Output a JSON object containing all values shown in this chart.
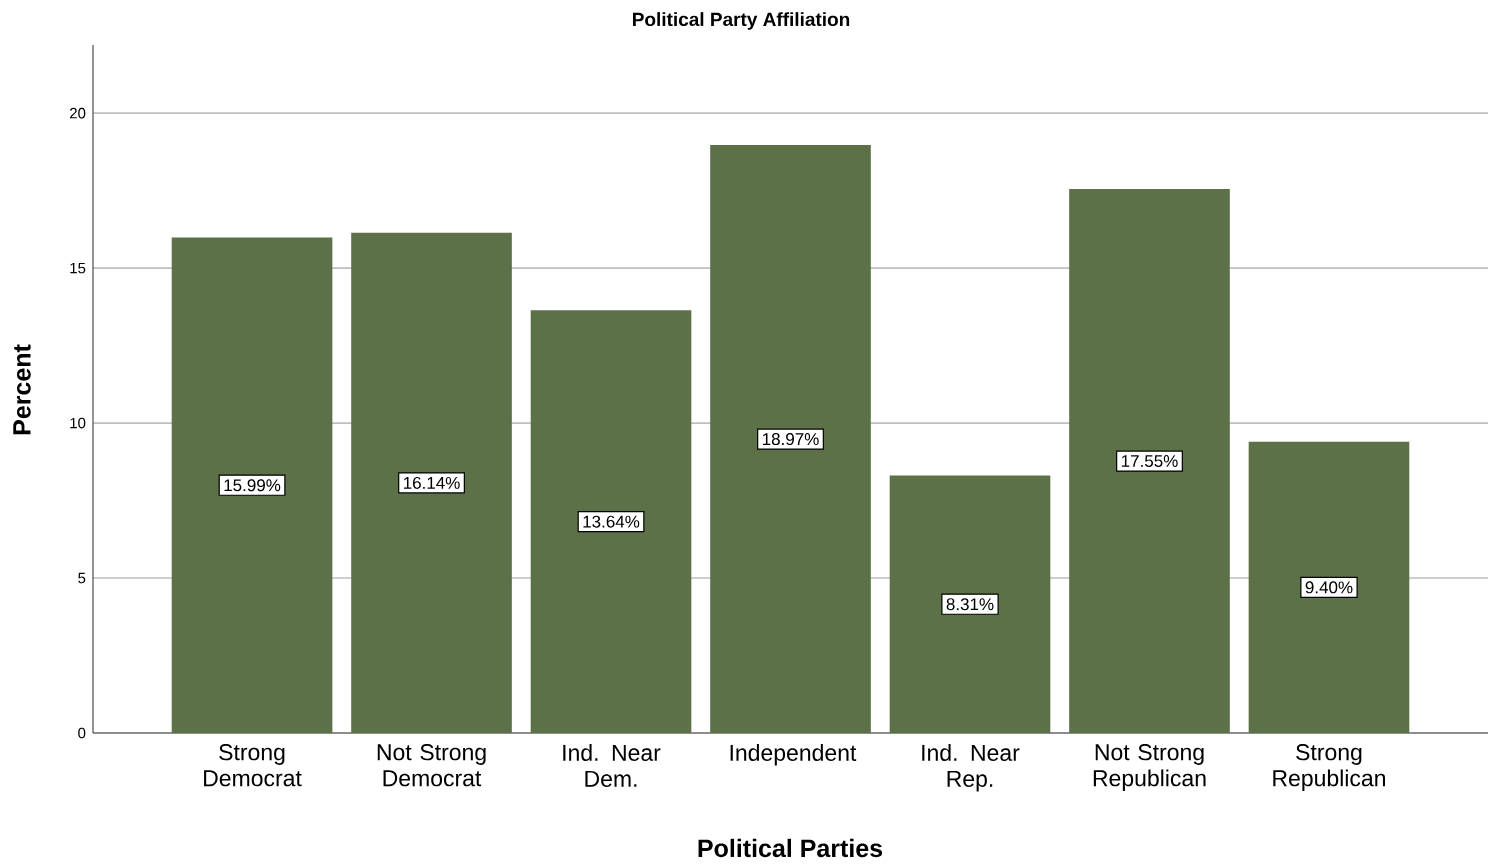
{
  "chart_data": {
    "type": "bar",
    "title": "Political Party Affiliation",
    "xlabel": "Political Parties",
    "ylabel": "Percent",
    "categories": [
      "Strong Democrat",
      "Not Strong Democrat",
      "Ind. Near Dem.",
      "Independent",
      "Ind. Near Rep.",
      "Not Strong Republican",
      "Strong Republican"
    ],
    "values": [
      15.99,
      16.14,
      13.64,
      18.97,
      8.31,
      17.55,
      9.4
    ],
    "value_labels": [
      "15.99%",
      "16.14%",
      "13.64%",
      "18.97%",
      "8.31%",
      "17.55%",
      "9.40%"
    ],
    "color": "#5c7148",
    "ylim": [
      0,
      22.2
    ],
    "yticks": [
      0,
      5,
      10,
      15,
      20
    ],
    "grid": "y"
  }
}
